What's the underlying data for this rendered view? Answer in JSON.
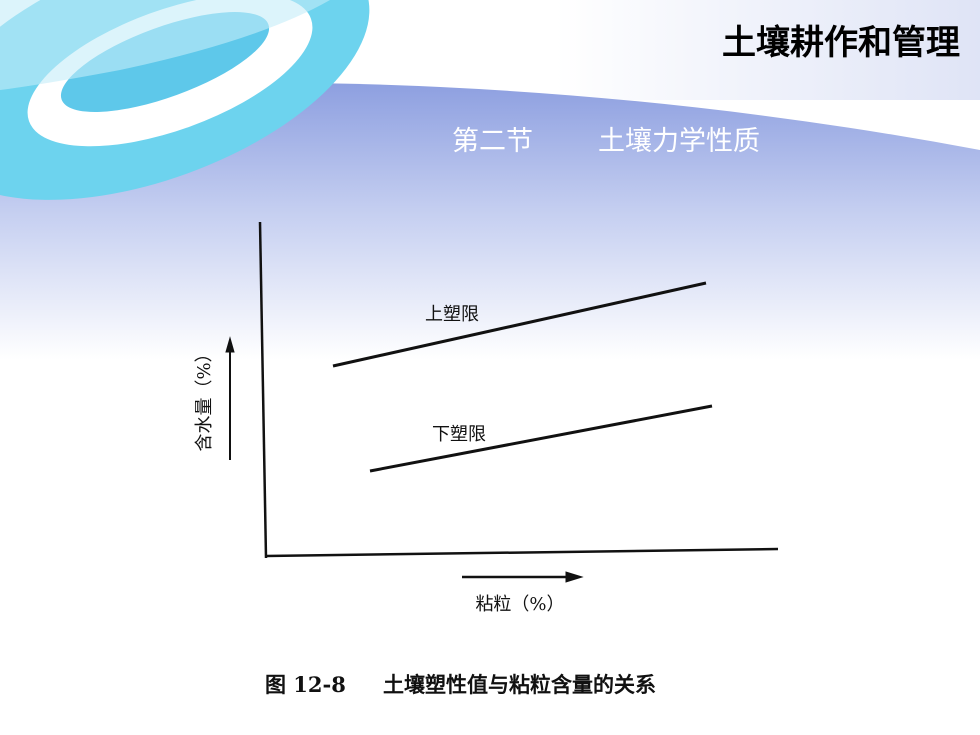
{
  "header": {
    "title": "土壤耕作和管理",
    "section": "第二节",
    "subtitle": "土壤力学性质"
  },
  "figure": {
    "y_axis_label": "含水量（%）",
    "x_axis_label": "粘粒（%）",
    "upper_line_label": "上塑限",
    "lower_line_label": "下塑限",
    "caption_number": "图 12-8",
    "caption_text": "土壤塑性值与粘粒含量的关系"
  }
}
